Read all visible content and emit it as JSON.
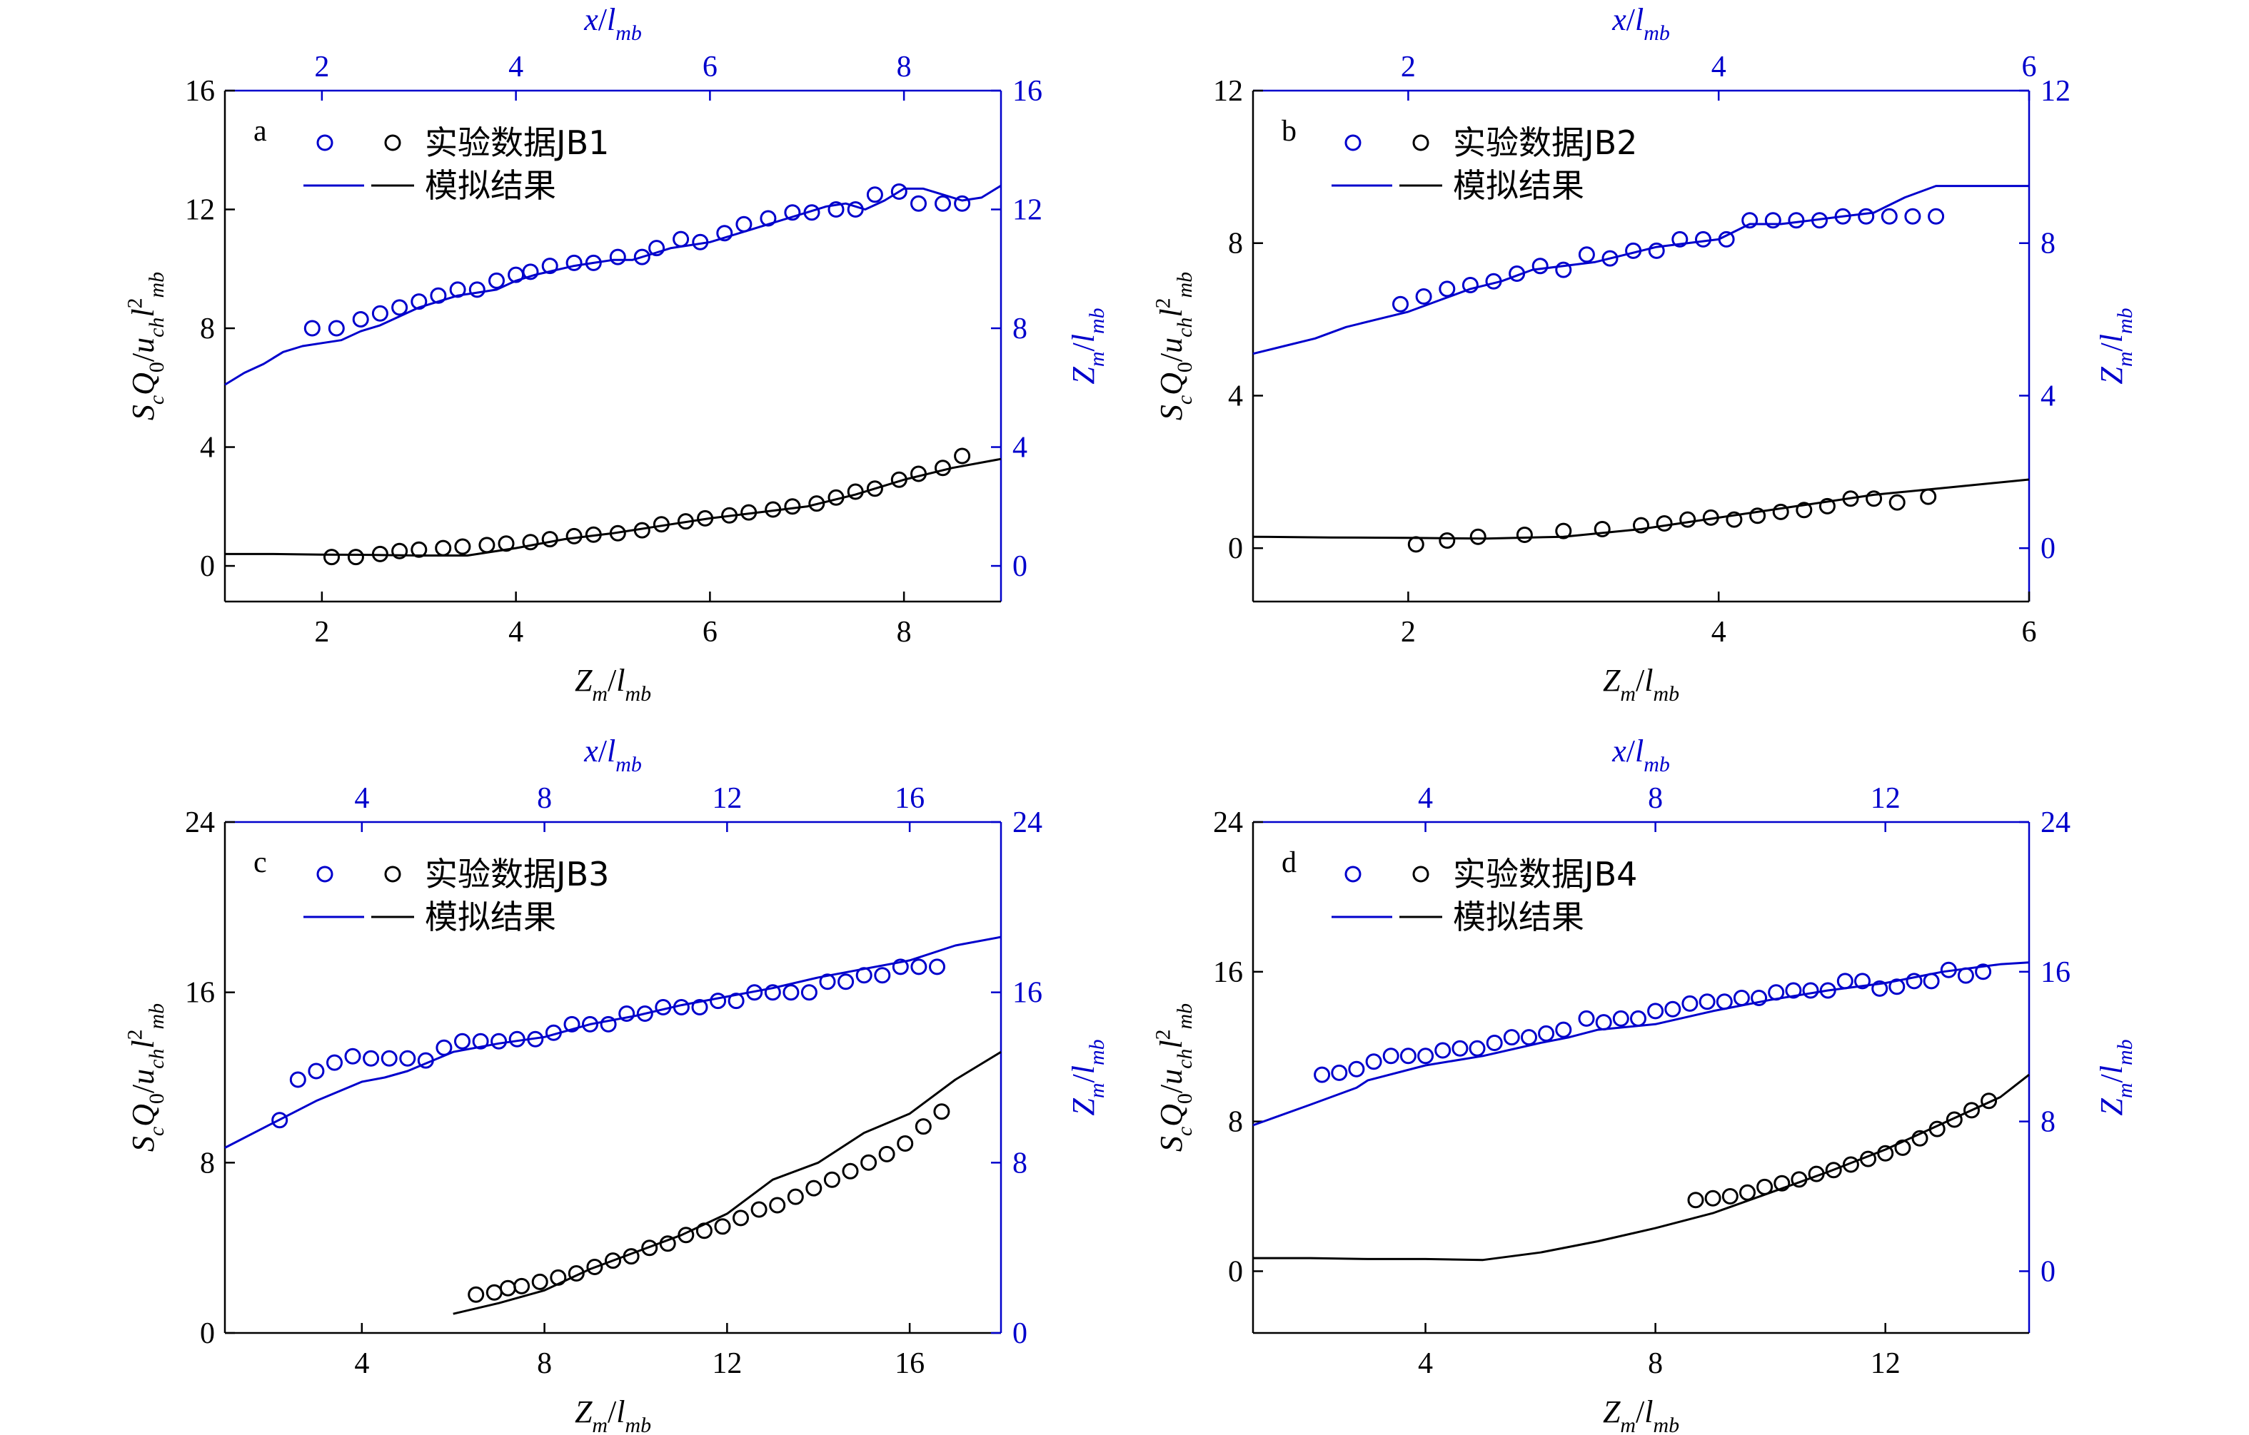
{
  "colors": {
    "experimental_z": "#0000cc",
    "experimental_s": "#000000",
    "axis_right": "#0000cc",
    "axis_left": "#000000"
  },
  "chart_data": [
    {
      "type": "scatter",
      "panel_letter": "a",
      "legend": {
        "data_label": "实验数据JB1",
        "sim_label": "模拟结果",
        "placement": "top-left"
      },
      "xlabel_bottom": "Z_m/l_mb",
      "xlabel_top": "x/l_mb",
      "ylabel_left": "S_cQ_0/u_chl²_mb",
      "ylabel_right": "Z_m/l_mb",
      "xlim": [
        1,
        9
      ],
      "ylim_left": [
        -1.2,
        16
      ],
      "ylim_right": [
        -1.2,
        16
      ],
      "xticks": [
        2,
        4,
        6,
        8
      ],
      "yticks": [
        0,
        4,
        8,
        12,
        16
      ],
      "series": [
        {
          "name": "实验数据JB1",
          "axis": "right",
          "style": "marker",
          "color": "#0000cc",
          "x": [
            1.9,
            2.15,
            2.4,
            2.6,
            2.8,
            3.0,
            3.2,
            3.4,
            3.6,
            3.8,
            4.0,
            4.15,
            4.35,
            4.6,
            4.8,
            5.05,
            5.3,
            5.45,
            5.7,
            5.9,
            6.15,
            6.35,
            6.6,
            6.85,
            7.05,
            7.3,
            7.5,
            7.7,
            7.95,
            8.15,
            8.4,
            8.6
          ],
          "y": [
            8.0,
            8.0,
            8.3,
            8.5,
            8.7,
            8.9,
            9.1,
            9.3,
            9.3,
            9.6,
            9.8,
            9.9,
            10.1,
            10.2,
            10.2,
            10.4,
            10.4,
            10.7,
            11.0,
            10.9,
            11.2,
            11.5,
            11.7,
            11.9,
            11.9,
            12.0,
            12.0,
            12.5,
            12.6,
            12.2,
            12.2,
            12.2
          ]
        },
        {
          "name": "实验数据JB1",
          "axis": "left",
          "style": "marker",
          "color": "#000000",
          "x": [
            2.1,
            2.35,
            2.6,
            2.8,
            3.0,
            3.25,
            3.45,
            3.7,
            3.9,
            4.15,
            4.35,
            4.6,
            4.8,
            5.05,
            5.3,
            5.5,
            5.75,
            5.95,
            6.2,
            6.4,
            6.65,
            6.85,
            7.1,
            7.3,
            7.5,
            7.7,
            7.95,
            8.15,
            8.4,
            8.6
          ],
          "y": [
            0.3,
            0.3,
            0.4,
            0.5,
            0.55,
            0.6,
            0.65,
            0.7,
            0.75,
            0.8,
            0.9,
            1.0,
            1.05,
            1.1,
            1.2,
            1.4,
            1.5,
            1.6,
            1.7,
            1.8,
            1.9,
            2.0,
            2.1,
            2.3,
            2.5,
            2.6,
            2.9,
            3.1,
            3.3,
            3.7
          ]
        },
        {
          "name": "模拟结果",
          "axis": "right",
          "style": "line",
          "color": "#0000cc",
          "x": [
            1.0,
            1.2,
            1.4,
            1.6,
            1.8,
            2.0,
            2.2,
            2.4,
            2.6,
            2.8,
            3.0,
            3.2,
            3.4,
            3.6,
            3.8,
            4.0,
            4.2,
            4.4,
            4.6,
            4.8,
            5.0,
            5.2,
            5.4,
            5.6,
            5.8,
            6.0,
            6.2,
            6.4,
            6.6,
            6.8,
            7.0,
            7.2,
            7.4,
            7.6,
            7.8,
            8.0,
            8.2,
            8.4,
            8.6,
            8.8,
            9.0
          ],
          "y": [
            6.1,
            6.5,
            6.8,
            7.2,
            7.4,
            7.5,
            7.6,
            7.9,
            8.1,
            8.4,
            8.7,
            8.9,
            9.1,
            9.2,
            9.3,
            9.6,
            9.8,
            9.95,
            10.1,
            10.2,
            10.3,
            10.3,
            10.5,
            10.7,
            10.8,
            10.9,
            11.1,
            11.3,
            11.5,
            11.7,
            11.9,
            12.1,
            12.2,
            12.0,
            12.3,
            12.7,
            12.7,
            12.5,
            12.3,
            12.4,
            12.8
          ]
        },
        {
          "name": "模拟结果",
          "axis": "left",
          "style": "line",
          "color": "#000000",
          "x": [
            1.0,
            1.5,
            2.0,
            2.5,
            3.0,
            3.5,
            4.0,
            4.5,
            5.0,
            5.5,
            6.0,
            6.5,
            7.0,
            7.5,
            8.0,
            8.5,
            9.0
          ],
          "y": [
            0.4,
            0.4,
            0.38,
            0.37,
            0.35,
            0.35,
            0.6,
            0.9,
            1.1,
            1.35,
            1.6,
            1.8,
            2.0,
            2.4,
            2.9,
            3.3,
            3.6
          ]
        }
      ]
    },
    {
      "type": "scatter",
      "panel_letter": "b",
      "legend": {
        "data_label": "实验数据JB2",
        "sim_label": "模拟结果",
        "placement": "top-left"
      },
      "xlabel_bottom": "Z_m/l_mb",
      "xlabel_top": "x/l_mb",
      "ylabel_left": "S_cQ_0/u_chl²_mb",
      "ylabel_right": "Z_m/l_mb",
      "xlim": [
        1,
        6
      ],
      "ylim_left": [
        -1.4,
        12
      ],
      "ylim_right": [
        -1.4,
        12
      ],
      "xticks": [
        2,
        4,
        6
      ],
      "yticks": [
        0,
        4,
        8,
        12
      ],
      "series": [
        {
          "name": "实验数据JB2",
          "axis": "right",
          "style": "marker",
          "color": "#0000cc",
          "x": [
            1.95,
            2.1,
            2.25,
            2.4,
            2.55,
            2.7,
            2.85,
            3.0,
            3.15,
            3.3,
            3.45,
            3.6,
            3.75,
            3.9,
            4.05,
            4.2,
            4.35,
            4.5,
            4.65,
            4.8,
            4.95,
            5.1,
            5.25,
            5.4
          ],
          "y": [
            6.4,
            6.6,
            6.8,
            6.9,
            7.0,
            7.2,
            7.4,
            7.3,
            7.7,
            7.6,
            7.8,
            7.8,
            8.1,
            8.1,
            8.1,
            8.6,
            8.6,
            8.6,
            8.6,
            8.7,
            8.7,
            8.7,
            8.7,
            8.7
          ]
        },
        {
          "name": "实验数据JB2",
          "axis": "left",
          "style": "marker",
          "color": "#000000",
          "x": [
            2.05,
            2.25,
            2.45,
            2.75,
            3.0,
            3.25,
            3.5,
            3.65,
            3.8,
            3.95,
            4.1,
            4.25,
            4.4,
            4.55,
            4.7,
            4.85,
            5.0,
            5.15,
            5.35
          ],
          "y": [
            0.1,
            0.2,
            0.3,
            0.35,
            0.45,
            0.5,
            0.6,
            0.65,
            0.75,
            0.8,
            0.75,
            0.85,
            0.95,
            1.0,
            1.1,
            1.3,
            1.3,
            1.2,
            1.35
          ]
        },
        {
          "name": "模拟结果",
          "axis": "right",
          "style": "line",
          "color": "#0000cc",
          "x": [
            1.0,
            1.2,
            1.4,
            1.6,
            1.8,
            2.0,
            2.2,
            2.4,
            2.6,
            2.8,
            3.0,
            3.2,
            3.4,
            3.6,
            3.8,
            4.0,
            4.2,
            4.4,
            4.6,
            4.8,
            5.0,
            5.2,
            5.4,
            5.6,
            5.8,
            6.0
          ],
          "y": [
            5.1,
            5.3,
            5.5,
            5.8,
            6.0,
            6.2,
            6.5,
            6.8,
            7.0,
            7.3,
            7.4,
            7.5,
            7.7,
            7.9,
            8.0,
            8.1,
            8.5,
            8.5,
            8.6,
            8.7,
            8.8,
            9.2,
            9.5,
            9.5,
            9.5,
            9.5
          ]
        },
        {
          "name": "模拟结果",
          "axis": "left",
          "style": "line",
          "color": "#000000",
          "x": [
            1.0,
            1.5,
            2.0,
            2.5,
            3.0,
            3.5,
            4.0,
            4.5,
            5.0,
            5.5,
            6.0
          ],
          "y": [
            0.3,
            0.28,
            0.27,
            0.25,
            0.3,
            0.5,
            0.8,
            1.1,
            1.4,
            1.6,
            1.8
          ]
        }
      ]
    },
    {
      "type": "scatter",
      "panel_letter": "c",
      "legend": {
        "data_label": "实验数据JB3",
        "sim_label": "模拟结果",
        "placement": "top-left"
      },
      "xlabel_bottom": "Z_m/l_mb",
      "xlabel_top": "x/l_mb",
      "ylabel_left": "S_cQ_0/u_chl²_mb",
      "ylabel_right": "Z_m/l_mb",
      "xlim": [
        1,
        18
      ],
      "ylim_left": [
        0,
        24
      ],
      "ylim_right": [
        0,
        24
      ],
      "xticks": [
        4,
        8,
        12,
        16
      ],
      "yticks": [
        0,
        8,
        16,
        24
      ],
      "series": [
        {
          "name": "实验数据JB3",
          "axis": "right",
          "style": "marker",
          "color": "#0000cc",
          "x": [
            2.2,
            2.6,
            3.0,
            3.4,
            3.8,
            4.2,
            4.6,
            5.0,
            5.4,
            5.8,
            6.2,
            6.6,
            7.0,
            7.4,
            7.8,
            8.2,
            8.6,
            9.0,
            9.4,
            9.8,
            10.2,
            10.6,
            11.0,
            11.4,
            11.8,
            12.2,
            12.6,
            13.0,
            13.4,
            13.8,
            14.2,
            14.6,
            15.0,
            15.4,
            15.8,
            16.2,
            16.6
          ],
          "y": [
            10.0,
            11.9,
            12.3,
            12.7,
            13.0,
            12.9,
            12.9,
            12.9,
            12.8,
            13.4,
            13.7,
            13.7,
            13.7,
            13.8,
            13.8,
            14.1,
            14.5,
            14.5,
            14.5,
            15.0,
            15.0,
            15.3,
            15.3,
            15.3,
            15.6,
            15.6,
            16.0,
            16.0,
            16.0,
            16.0,
            16.5,
            16.5,
            16.8,
            16.8,
            17.2,
            17.2,
            17.2
          ]
        },
        {
          "name": "实验数据JB3",
          "axis": "left",
          "style": "marker",
          "color": "#000000",
          "x": [
            6.5,
            6.9,
            7.2,
            7.5,
            7.9,
            8.3,
            8.7,
            9.1,
            9.5,
            9.9,
            10.3,
            10.7,
            11.1,
            11.5,
            11.9,
            12.3,
            12.7,
            13.1,
            13.5,
            13.9,
            14.3,
            14.7,
            15.1,
            15.5,
            15.9,
            16.3,
            16.7
          ],
          "y": [
            1.8,
            1.9,
            2.1,
            2.2,
            2.4,
            2.6,
            2.8,
            3.1,
            3.4,
            3.6,
            4.0,
            4.2,
            4.6,
            4.8,
            5.0,
            5.4,
            5.8,
            6.0,
            6.4,
            6.8,
            7.2,
            7.6,
            8.0,
            8.4,
            8.9,
            9.7,
            10.4
          ]
        },
        {
          "name": "模拟结果",
          "axis": "right",
          "style": "line",
          "color": "#0000cc",
          "x": [
            1.0,
            2.0,
            3.0,
            4.0,
            4.5,
            5.0,
            6.0,
            7.0,
            8.0,
            9.0,
            10.0,
            11.0,
            12.0,
            13.0,
            14.0,
            15.0,
            16.0,
            17.0,
            18.0
          ],
          "y": [
            8.7,
            9.8,
            10.9,
            11.8,
            12.0,
            12.3,
            13.2,
            13.6,
            13.9,
            14.5,
            14.9,
            15.4,
            15.8,
            16.2,
            16.7,
            17.1,
            17.5,
            18.2,
            18.6
          ]
        },
        {
          "name": "模拟结果",
          "axis": "left",
          "style": "line",
          "color": "#000000",
          "x": [
            6.0,
            7.0,
            8.0,
            9.0,
            10.0,
            11.0,
            12.0,
            13.0,
            14.0,
            15.0,
            16.0,
            17.0,
            18.0
          ],
          "y": [
            0.9,
            1.4,
            2.0,
            3.0,
            3.8,
            4.6,
            5.6,
            7.2,
            8.0,
            9.4,
            10.3,
            11.9,
            13.2
          ]
        }
      ]
    },
    {
      "type": "scatter",
      "panel_letter": "d",
      "legend": {
        "data_label": "实验数据JB4",
        "sim_label": "模拟结果",
        "placement": "top-left"
      },
      "xlabel_bottom": "Z_m/l_mb",
      "xlabel_top": "x/l_mb",
      "ylabel_left": "S_cQ_0/u_chl²_mb",
      "ylabel_right": "Z_m/l_mb",
      "xlim": [
        1,
        14.5
      ],
      "ylim_left": [
        -3.3,
        24
      ],
      "ylim_right": [
        -3.3,
        24
      ],
      "xticks": [
        4,
        8,
        12
      ],
      "yticks": [
        0,
        8,
        16,
        24
      ],
      "series": [
        {
          "name": "实验数据JB4",
          "axis": "right",
          "style": "marker",
          "color": "#0000cc",
          "x": [
            2.2,
            2.5,
            2.8,
            3.1,
            3.4,
            3.7,
            4.0,
            4.3,
            4.6,
            4.9,
            5.2,
            5.5,
            5.8,
            6.1,
            6.4,
            6.8,
            7.1,
            7.4,
            7.7,
            8.0,
            8.3,
            8.6,
            8.9,
            9.2,
            9.5,
            9.8,
            10.1,
            10.4,
            10.7,
            11.0,
            11.3,
            11.6,
            11.9,
            12.2,
            12.5,
            12.8,
            13.1,
            13.4,
            13.7
          ],
          "y": [
            10.5,
            10.6,
            10.8,
            11.2,
            11.5,
            11.5,
            11.5,
            11.8,
            11.9,
            11.9,
            12.2,
            12.5,
            12.5,
            12.7,
            12.9,
            13.5,
            13.3,
            13.5,
            13.5,
            13.9,
            14.0,
            14.3,
            14.4,
            14.4,
            14.6,
            14.6,
            14.9,
            15.0,
            15.0,
            15.0,
            15.5,
            15.5,
            15.1,
            15.2,
            15.5,
            15.5,
            16.1,
            15.8,
            16.0
          ]
        },
        {
          "name": "实验数据JB4",
          "axis": "left",
          "style": "marker",
          "color": "#000000",
          "x": [
            8.7,
            9.0,
            9.3,
            9.6,
            9.9,
            10.2,
            10.5,
            10.8,
            11.1,
            11.4,
            11.7,
            12.0,
            12.3,
            12.6,
            12.9,
            13.2,
            13.5,
            13.8
          ],
          "y": [
            3.8,
            3.9,
            4.0,
            4.2,
            4.5,
            4.7,
            4.9,
            5.2,
            5.4,
            5.7,
            6.0,
            6.3,
            6.6,
            7.1,
            7.6,
            8.1,
            8.6,
            9.1
          ]
        },
        {
          "name": "模拟结果",
          "axis": "right",
          "style": "line",
          "color": "#0000cc",
          "x": [
            1.0,
            2.0,
            2.8,
            3.0,
            4.0,
            5.0,
            6.0,
            6.5,
            7.0,
            8.0,
            9.0,
            10.0,
            11.0,
            12.0,
            13.0,
            14.0,
            14.5
          ],
          "y": [
            7.8,
            8.9,
            9.8,
            10.2,
            11.0,
            11.5,
            12.2,
            12.5,
            12.9,
            13.2,
            13.9,
            14.5,
            15.0,
            15.4,
            16.0,
            16.4,
            16.5
          ]
        },
        {
          "name": "模拟结果",
          "axis": "left",
          "style": "line",
          "color": "#000000",
          "x": [
            1.0,
            2.0,
            3.0,
            4.0,
            5.0,
            6.0,
            7.0,
            8.0,
            9.0,
            10.0,
            11.0,
            12.0,
            13.0,
            14.0,
            14.5
          ],
          "y": [
            0.7,
            0.7,
            0.65,
            0.65,
            0.6,
            1.0,
            1.6,
            2.3,
            3.1,
            4.2,
            5.3,
            6.5,
            7.9,
            9.3,
            10.5
          ]
        }
      ]
    }
  ]
}
